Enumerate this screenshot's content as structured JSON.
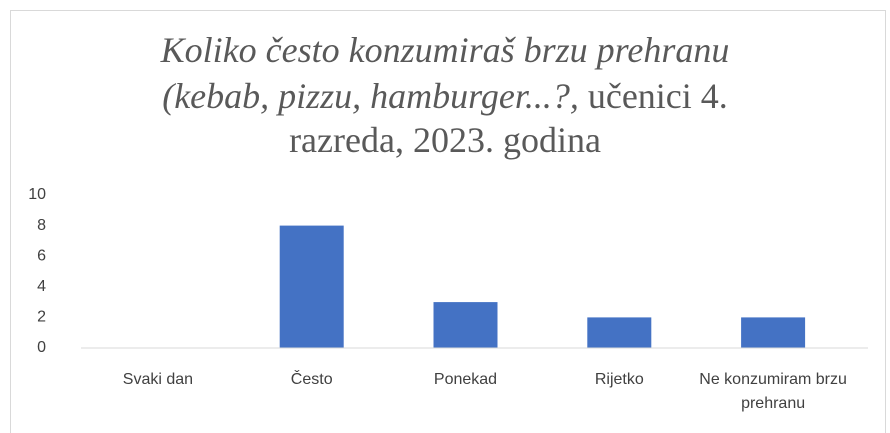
{
  "chart_data": {
    "type": "bar",
    "title": [
      [
        "Koliko često konzumiraš brzu prehranu"
      ],
      [
        "(kebab, pizzu, hamburger...?,",
        " učenici 4."
      ],
      [
        "razreda, 2023. godina"
      ]
    ],
    "categories": [
      "Svaki dan",
      "Često",
      "Ponekad",
      "Rijetko",
      "Ne konzumiram brzu prehranu"
    ],
    "values": [
      0,
      8,
      3,
      2,
      2
    ],
    "color": "#4472c4",
    "ylim": [
      0,
      10
    ],
    "yticks": [
      0,
      2,
      4,
      6,
      8,
      10
    ],
    "grid": false
  }
}
